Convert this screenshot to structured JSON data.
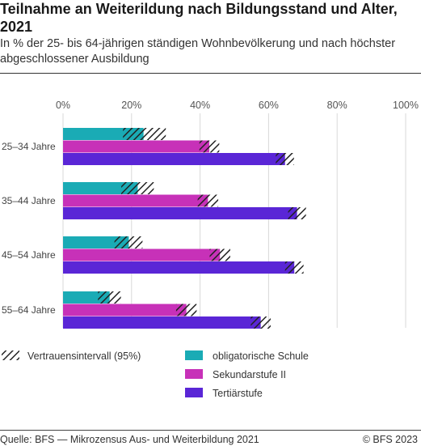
{
  "title": "Teilnahme an Weiterildung nach Bildungsstand und Alter, 2021",
  "subtitle": "In % der 25- bis 64-jährigen ständigen Wohnbevölkerung und nach höchster abgeschlossener Ausbildung",
  "source": "Quelle: BFS — Mikrozensus Aus- und Weiterbildung 2021",
  "copyright": "© BFS 2023",
  "chart_data": {
    "type": "bar",
    "orientation": "horizontal",
    "xlim": [
      0,
      100
    ],
    "xticks": [
      "0%",
      "20%",
      "40%",
      "60%",
      "80%",
      "100%"
    ],
    "categories": [
      "25–34 Jahre",
      "35–44 Jahre",
      "45–54 Jahre",
      "55–64 Jahre"
    ],
    "series": [
      {
        "name": "obligatorische Schule",
        "color": "#1aabb5",
        "values": [
          23.5,
          21.8,
          19.2,
          13.6
        ],
        "ci": [
          [
            17.5,
            30.0
          ],
          [
            17.0,
            26.5
          ],
          [
            15.0,
            23.2
          ],
          [
            10.2,
            16.9
          ]
        ]
      },
      {
        "name": "Sekundarstufe II",
        "color": "#c731b8",
        "values": [
          42.7,
          42.3,
          45.8,
          36.0
        ],
        "ci": [
          [
            39.8,
            45.6
          ],
          [
            39.3,
            45.3
          ],
          [
            42.8,
            48.8
          ],
          [
            33.0,
            39.0
          ]
        ]
      },
      {
        "name": "Tertiärstufe",
        "color": "#5a26d6",
        "values": [
          64.8,
          68.3,
          67.5,
          57.7
        ],
        "ci": [
          [
            62.1,
            67.4
          ],
          [
            65.7,
            70.9
          ],
          [
            64.8,
            70.2
          ],
          [
            54.8,
            60.6
          ]
        ]
      }
    ],
    "legend": {
      "ci_label": "Vertrauensintervall (95%)",
      "position": "bottom"
    },
    "grid": true
  }
}
